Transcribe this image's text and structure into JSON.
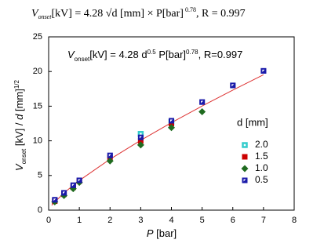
{
  "chart_data": {
    "type": "scatter",
    "title": [
      "V",
      "onset",
      "[kV] = 4.28 √d [mm] × P[bar]",
      " 0.78",
      ", R = 0.997"
    ],
    "annotation": [
      "V",
      "onset",
      "[kV] = 4.28 d",
      "0.5",
      " P[bar]",
      "0.78",
      ", R=0.997"
    ],
    "x_label": [
      "P",
      " [bar]"
    ],
    "y_label": [
      "V",
      "onset",
      " [kV] / ",
      "d",
      " [mm]",
      "1/2"
    ],
    "legend_title": "d [mm]",
    "xlim": [
      0,
      8
    ],
    "xticks": [
      0,
      1,
      2,
      3,
      4,
      5,
      6,
      7,
      8
    ],
    "ylim": [
      0,
      25
    ],
    "yticks": [
      0,
      5,
      10,
      15,
      20,
      25
    ],
    "grid": false,
    "series": [
      {
        "name": "2.0",
        "color": "#33cccc",
        "marker": "open-square",
        "x": [
          3,
          4
        ],
        "values": [
          11.0,
          12.7
        ]
      },
      {
        "name": "1.5",
        "color": "#cc0000",
        "marker": "square",
        "x": [
          0.2,
          0.5,
          0.8,
          1,
          2,
          3,
          4
        ],
        "values": [
          1.3,
          2.3,
          3.3,
          4.2,
          7.6,
          10.0,
          12.5
        ]
      },
      {
        "name": "1.0",
        "color": "#1f6b1f",
        "marker": "diamond",
        "x": [
          0.2,
          0.5,
          0.8,
          1,
          2,
          3,
          4,
          5
        ],
        "values": [
          1.2,
          2.1,
          3.1,
          4.0,
          7.1,
          9.4,
          11.9,
          14.2
        ]
      },
      {
        "name": "0.5",
        "color": "#1a1aaa",
        "marker": "half-square",
        "x": [
          0.2,
          0.5,
          0.8,
          1,
          2,
          3,
          4,
          5,
          6,
          7
        ],
        "values": [
          1.5,
          2.5,
          3.6,
          4.3,
          7.9,
          10.5,
          12.9,
          15.6,
          18.0,
          20.1
        ]
      }
    ],
    "fit": {
      "color": "#dd3333",
      "x": [
        0.1,
        0.5,
        1,
        2,
        3,
        4,
        5,
        6,
        7
      ],
      "values": [
        0.71,
        2.49,
        4.28,
        7.35,
        10.08,
        12.62,
        15.02,
        17.32,
        19.53
      ]
    }
  }
}
